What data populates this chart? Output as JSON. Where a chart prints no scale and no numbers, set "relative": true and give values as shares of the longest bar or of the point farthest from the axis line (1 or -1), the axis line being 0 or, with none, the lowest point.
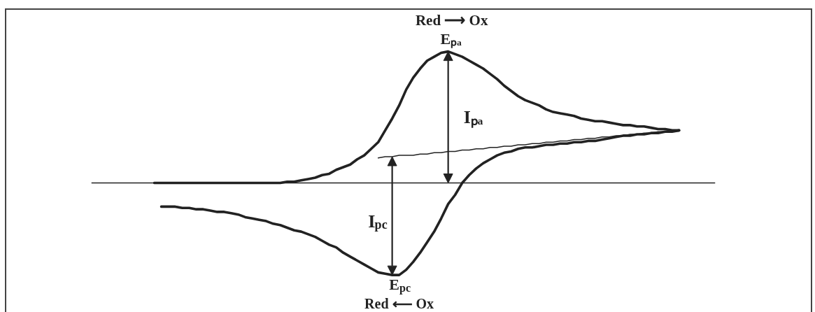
{
  "chart_data": {
    "type": "line",
    "relative": true,
    "tick_labels": false,
    "grid": false,
    "categories": [
      null,
      null,
      null,
      null,
      null,
      null,
      null,
      null,
      null,
      null,
      null,
      null,
      null,
      null,
      null,
      null,
      null,
      null,
      null,
      null,
      null,
      null,
      null,
      null,
      null,
      null,
      null,
      null,
      null,
      null,
      null,
      null,
      null,
      null,
      null,
      null,
      null,
      null,
      null,
      null,
      null,
      null,
      null,
      null,
      null,
      null,
      null,
      null,
      null,
      null,
      null,
      null,
      null,
      null,
      null,
      null,
      null,
      null,
      null,
      null,
      null,
      null,
      null,
      null,
      null,
      null,
      null,
      null,
      null,
      null,
      null,
      null,
      null,
      null,
      null,
      null
    ],
    "series": [
      {
        "color": "#222222",
        "values": [
          0,
          0,
          0,
          0,
          0,
          0,
          0,
          0,
          0,
          0,
          0,
          0,
          0,
          0,
          0,
          0,
          0,
          0,
          0,
          0.01,
          0.01,
          0.02,
          0.03,
          0.04,
          0.06,
          0.07,
          0.1,
          0.12,
          0.14,
          0.18,
          0.21,
          0.26,
          0.31,
          0.4,
          0.49,
          0.59,
          0.71,
          0.8,
          0.87,
          0.93,
          0.96,
          0.99,
          1.0,
          0.98,
          0.96,
          0.93,
          0.9,
          0.87,
          0.83,
          0.79,
          0.74,
          0.7,
          0.66,
          0.63,
          0.61,
          0.59,
          0.56,
          0.54,
          0.53,
          0.52,
          0.51,
          0.49,
          0.48,
          0.47,
          0.47,
          0.46,
          0.45,
          0.44,
          0.44,
          0.43,
          0.43,
          0.42,
          0.41,
          0.41,
          0.4,
          0.4
        ]
      },
      {
        "color": "#222222",
        "values": [
          null,
          -0.18,
          -0.18,
          -0.18,
          -0.19,
          -0.19,
          -0.2,
          -0.2,
          -0.21,
          -0.22,
          -0.22,
          -0.23,
          -0.24,
          -0.26,
          -0.27,
          -0.28,
          -0.29,
          -0.31,
          -0.32,
          -0.34,
          -0.36,
          -0.37,
          -0.39,
          -0.41,
          -0.44,
          -0.47,
          -0.49,
          -0.53,
          -0.56,
          -0.59,
          -0.62,
          -0.65,
          -0.68,
          -0.69,
          -0.7,
          -0.7,
          -0.66,
          -0.6,
          -0.53,
          -0.45,
          -0.37,
          -0.27,
          -0.16,
          -0.09,
          0,
          0.06,
          0.11,
          0.15,
          0.18,
          0.21,
          0.23,
          0.24,
          0.26,
          0.27,
          0.27,
          0.28,
          0.29,
          0.29,
          0.3,
          0.3,
          0.31,
          0.31,
          0.32,
          0.32,
          0.33,
          0.34,
          0.35,
          0.36,
          0.36,
          0.37,
          0.37,
          0.38,
          0.38,
          0.39,
          0.39,
          0.4
        ]
      },
      {
        "color": "#222222",
        "values": [
          null,
          null,
          null,
          null,
          null,
          null,
          null,
          null,
          null,
          null,
          null,
          null,
          null,
          null,
          null,
          null,
          null,
          null,
          null,
          null,
          null,
          null,
          null,
          null,
          null,
          null,
          null,
          null,
          null,
          null,
          null,
          null,
          0.19,
          0.2,
          0.2,
          0.21,
          0.21,
          0.21,
          0.22,
          0.22,
          0.23,
          0.23,
          0.24,
          0.24,
          0.25,
          0.25,
          0.26,
          0.26,
          0.27,
          0.27,
          0.28,
          0.28,
          0.29,
          0.29,
          0.3,
          0.3,
          0.31,
          0.31,
          0.32,
          0.32,
          0.33,
          0.33,
          0.34,
          0.34,
          0.35,
          0.35,
          0.36,
          0.36,
          0.37,
          0.37,
          0.38,
          0.38,
          0.39,
          0.39,
          0.4,
          0.4
        ]
      }
    ],
    "annotations": [
      "Red ⟶ Ox",
      "Eₚₐ",
      "Iₚₐ",
      "I$_{pc}$",
      "E$_{pc}$",
      "Red ⟵ Ox"
    ]
  }
}
